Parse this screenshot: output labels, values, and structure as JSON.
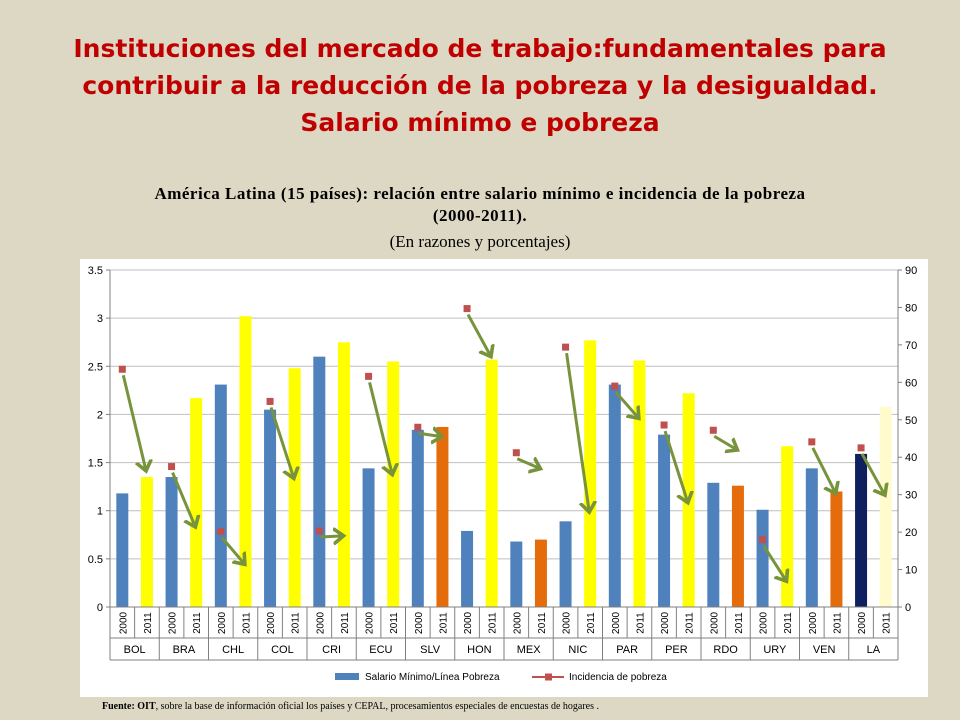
{
  "title_lines": [
    "Instituciones del mercado de trabajo:fundamentales para",
    "contribuir a la reducción de la pobreza y la desigualdad.",
    "Salario mínimo e pobreza"
  ],
  "subtitle_lines": [
    "América Latina (15 países): relación entre salario mínimo e incidencia de la pobreza",
    "(2000-2011)."
  ],
  "units": "(En razones y porcentajes)",
  "source": {
    "label": "Fuente: OIT",
    "text": ", sobre la base de información oficial los países y CEPAL, procesamientos especiales de encuestas de hogares ."
  },
  "chart_data": {
    "type": "bar",
    "countries": [
      "BOL",
      "BRA",
      "CHL",
      "COL",
      "CRI",
      "ECU",
      "SLV",
      "HON",
      "MEX",
      "NIC",
      "PAR",
      "PER",
      "RDO",
      "URY",
      "VEN",
      "LA"
    ],
    "years": [
      "2000",
      "2011"
    ],
    "y_left": {
      "min": 0,
      "max": 3.5,
      "step": 0.5,
      "ticks": [
        "0",
        "0.5",
        "1",
        "1.5",
        "2",
        "2.5",
        "3",
        "3.5"
      ]
    },
    "y_right": {
      "min": 0,
      "max": 90,
      "step": 10,
      "ticks": [
        "0",
        "10",
        "20",
        "30",
        "40",
        "50",
        "60",
        "70",
        "80",
        "90"
      ]
    },
    "series": [
      {
        "name": "Salario Mínimo/Línea Pobreza",
        "axis": "left",
        "color": "#4f81bd",
        "values": [
          1.18,
          1.35,
          1.35,
          2.17,
          2.31,
          3.02,
          2.05,
          2.48,
          2.6,
          2.75,
          1.44,
          2.55,
          1.84,
          1.87,
          0.79,
          2.57,
          0.68,
          0.7,
          0.89,
          2.77,
          2.31,
          2.56,
          1.79,
          2.22,
          1.29,
          1.26,
          1.01,
          1.67,
          1.44,
          1.2,
          1.59,
          2.08
        ],
        "bar_colors": [
          "#4f81bd",
          "#ffff00",
          "#4f81bd",
          "#ffff00",
          "#4f81bd",
          "#ffff00",
          "#4f81bd",
          "#ffff00",
          "#4f81bd",
          "#ffff00",
          "#4f81bd",
          "#ffff00",
          "#4f81bd",
          "#e46c0a",
          "#4f81bd",
          "#ffff00",
          "#4f81bd",
          "#e46c0a",
          "#4f81bd",
          "#ffff00",
          "#4f81bd",
          "#ffff00",
          "#4f81bd",
          "#ffff00",
          "#4f81bd",
          "#e46c0a",
          "#4f81bd",
          "#ffff00",
          "#4f81bd",
          "#e46c0a",
          "#0f1f5f",
          "#fffbcc"
        ]
      },
      {
        "name": "Incidencia de pobreza",
        "axis": "right",
        "color": "#c0504d",
        "points": [
          {
            "country": "BOL",
            "x": 0,
            "value": 63.5
          },
          {
            "country": "BRA",
            "x": 2,
            "value": 37.5
          },
          {
            "country": "CHL",
            "x": 4,
            "value": 20.2
          },
          {
            "country": "COL",
            "x": 6,
            "value": 54.9
          },
          {
            "country": "CRI",
            "x": 8,
            "value": 20.3
          },
          {
            "country": "ECU",
            "x": 10,
            "value": 61.6
          },
          {
            "country": "SLV",
            "x": 12,
            "value": 48.0
          },
          {
            "country": "HON",
            "x": 14,
            "value": 79.7
          },
          {
            "country": "MEX",
            "x": 16,
            "value": 41.2
          },
          {
            "country": "NIC",
            "x": 18,
            "value": 69.4
          },
          {
            "country": "PAR",
            "x": 20,
            "value": 59.0
          },
          {
            "country": "PER",
            "x": 22,
            "value": 48.6
          },
          {
            "country": "RDO",
            "x": 24,
            "value": 47.2
          },
          {
            "country": "URY",
            "x": 26,
            "value": 18.0
          },
          {
            "country": "VEN",
            "x": 28,
            "value": 44.1
          },
          {
            "country": "LA",
            "x": 30,
            "value": 42.5
          }
        ]
      }
    ],
    "arrows": {
      "color": "#77933c",
      "items": [
        {
          "country": "BOL",
          "from": 63.5,
          "to": 36.5
        },
        {
          "country": "BRA",
          "from": 37.5,
          "to": 21.5
        },
        {
          "country": "CHL",
          "from": 20.2,
          "to": 11.5
        },
        {
          "country": "COL",
          "from": 54.9,
          "to": 34.5
        },
        {
          "country": "CRI",
          "from": 20.3,
          "to": 19.0
        },
        {
          "country": "ECU",
          "from": 61.6,
          "to": 35.5
        },
        {
          "country": "SLV",
          "from": 48.0,
          "to": 45.5
        },
        {
          "country": "HON",
          "from": 79.7,
          "to": 67.0
        },
        {
          "country": "MEX",
          "from": 41.2,
          "to": 37.0
        },
        {
          "country": "NIC",
          "from": 69.4,
          "to": 25.5
        },
        {
          "country": "PAR",
          "from": 59.0,
          "to": 50.5
        },
        {
          "country": "PER",
          "from": 48.6,
          "to": 28.0
        },
        {
          "country": "RDO",
          "from": 47.2,
          "to": 42.0
        },
        {
          "country": "URY",
          "from": 18.0,
          "to": 7.0
        },
        {
          "country": "VEN",
          "from": 44.1,
          "to": 30.5
        },
        {
          "country": "LA",
          "from": 42.5,
          "to": 30.0
        }
      ]
    },
    "legend_position": "bottom",
    "grid": "horizontal"
  }
}
